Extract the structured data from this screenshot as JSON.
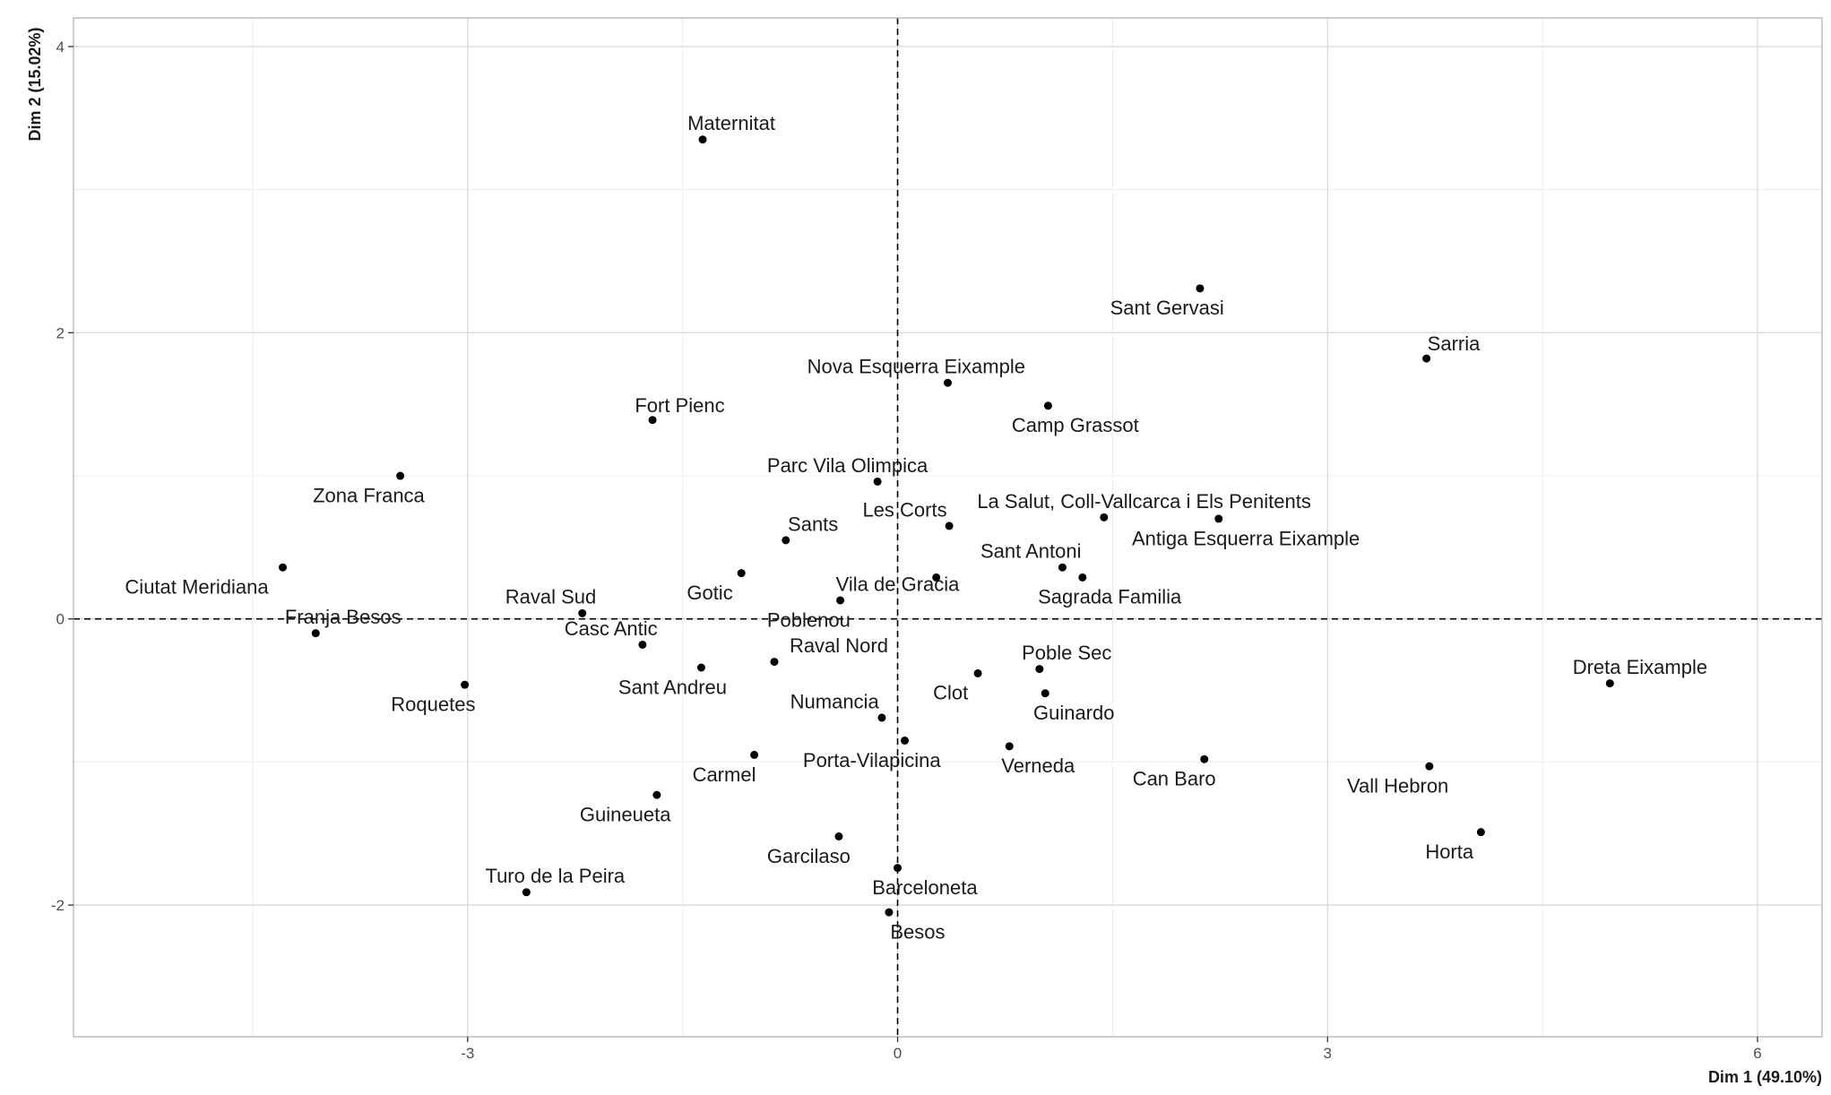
{
  "chart_data": {
    "type": "scatter",
    "title": "",
    "xlabel": "Dim 1 (49.10%)",
    "ylabel": "Dim 2 (15.02%)",
    "xlim": [
      -5.75,
      6.45
    ],
    "ylim": [
      -2.92,
      4.2
    ],
    "x_ticks": [
      -3,
      0,
      3,
      6
    ],
    "y_ticks": [
      -2,
      0,
      2,
      4
    ],
    "grid": true,
    "reference_lines": {
      "x": 0,
      "y": 0,
      "style": "dashed"
    },
    "colors": {
      "point": "#000000",
      "grid": "#d9d9d9",
      "grid_minor": "#ededed",
      "panel_border": "#b3b3b3",
      "text": "#1a1a1a"
    },
    "points": [
      {
        "label": "Maternitat",
        "x": -1.36,
        "y": 3.35,
        "label_dx": 0.2,
        "label_dy": 0.11
      },
      {
        "label": "Sant Gervasi",
        "x": 2.11,
        "y": 2.31,
        "label_dx": -0.23,
        "label_dy": -0.14
      },
      {
        "label": "Sarria",
        "x": 3.69,
        "y": 1.82,
        "label_dx": 0.19,
        "label_dy": 0.1
      },
      {
        "label": "Nova Esquerra Eixample",
        "x": 0.35,
        "y": 1.65,
        "label_dx": -0.22,
        "label_dy": 0.11
      },
      {
        "label": "Camp Grassot",
        "x": 1.05,
        "y": 1.49,
        "label_dx": 0.19,
        "label_dy": -0.14
      },
      {
        "label": "Fort Pienc",
        "x": -1.71,
        "y": 1.39,
        "label_dx": 0.19,
        "label_dy": 0.1
      },
      {
        "label": "Zona Franca",
        "x": -3.47,
        "y": 1.0,
        "label_dx": -0.22,
        "label_dy": -0.14
      },
      {
        "label": "Parc Vila Olimpica",
        "x": -0.14,
        "y": 0.96,
        "label_dx": -0.21,
        "label_dy": 0.11
      },
      {
        "label": "Les Corts",
        "x": 0.36,
        "y": 0.65,
        "label_dx": -0.31,
        "label_dy": 0.11
      },
      {
        "label": "La Salut, Coll-Vallcarca i Els Penitents",
        "x": 1.44,
        "y": 0.71,
        "label_dx": 0.28,
        "label_dy": 0.11
      },
      {
        "label": "Antiga Esquerra Eixample",
        "x": 2.24,
        "y": 0.7,
        "label_dx": 0.19,
        "label_dy": -0.14
      },
      {
        "label": "Sants",
        "x": -0.78,
        "y": 0.55,
        "label_dx": 0.19,
        "label_dy": 0.11
      },
      {
        "label": "Sant Antoni",
        "x": 1.15,
        "y": 0.36,
        "label_dx": -0.22,
        "label_dy": 0.11
      },
      {
        "label": "Sagrada Familia",
        "x": 1.29,
        "y": 0.29,
        "label_dx": 0.19,
        "label_dy": -0.14
      },
      {
        "label": "Vila de Gracia",
        "x": 0.27,
        "y": 0.29,
        "label_dx": -0.27,
        "label_dy": -0.05
      },
      {
        "label": "Gotic",
        "x": -1.09,
        "y": 0.32,
        "label_dx": -0.22,
        "label_dy": -0.14
      },
      {
        "label": "Ciutat Meridiana",
        "x": -4.29,
        "y": 0.36,
        "label_dx": -0.6,
        "label_dy": -0.14
      },
      {
        "label": "Raval Sud",
        "x": -2.2,
        "y": 0.04,
        "label_dx": -0.22,
        "label_dy": 0.11
      },
      {
        "label": "Poblenou",
        "x": -0.4,
        "y": 0.13,
        "label_dx": -0.22,
        "label_dy": -0.14
      },
      {
        "label": "Franja Besos",
        "x": -4.06,
        "y": -0.1,
        "label_dx": 0.19,
        "label_dy": 0.11
      },
      {
        "label": "Casc Antic",
        "x": -1.78,
        "y": -0.18,
        "label_dx": -0.22,
        "label_dy": 0.11
      },
      {
        "label": "Raval Nord",
        "x": -0.86,
        "y": -0.3,
        "label_dx": 0.45,
        "label_dy": 0.11
      },
      {
        "label": "Sant Andreu",
        "x": -1.37,
        "y": -0.34,
        "label_dx": -0.2,
        "label_dy": -0.14
      },
      {
        "label": "Poble Sec",
        "x": 0.99,
        "y": -0.35,
        "label_dx": 0.19,
        "label_dy": 0.11
      },
      {
        "label": "Clot",
        "x": 0.56,
        "y": -0.38,
        "label_dx": -0.19,
        "label_dy": -0.14
      },
      {
        "label": "Guinardo",
        "x": 1.03,
        "y": -0.52,
        "label_dx": 0.2,
        "label_dy": -0.14
      },
      {
        "label": "Dreta Eixample",
        "x": 4.97,
        "y": -0.45,
        "label_dx": 0.21,
        "label_dy": 0.11
      },
      {
        "label": "Roquetes",
        "x": -3.02,
        "y": -0.46,
        "label_dx": -0.22,
        "label_dy": -0.14
      },
      {
        "label": "Numancia",
        "x": -0.11,
        "y": -0.69,
        "label_dx": -0.33,
        "label_dy": 0.11
      },
      {
        "label": "Porta-Vilapicina",
        "x": 0.05,
        "y": -0.85,
        "label_dx": -0.23,
        "label_dy": -0.14
      },
      {
        "label": "Verneda",
        "x": 0.78,
        "y": -0.89,
        "label_dx": 0.2,
        "label_dy": -0.14
      },
      {
        "label": "Carmel",
        "x": -1.0,
        "y": -0.95,
        "label_dx": -0.21,
        "label_dy": -0.14
      },
      {
        "label": "Can Baro",
        "x": 2.14,
        "y": -0.98,
        "label_dx": -0.21,
        "label_dy": -0.14
      },
      {
        "label": "Vall Hebron",
        "x": 3.71,
        "y": -1.03,
        "label_dx": -0.22,
        "label_dy": -0.14
      },
      {
        "label": "Guineueta",
        "x": -1.68,
        "y": -1.23,
        "label_dx": -0.22,
        "label_dy": -0.14
      },
      {
        "label": "Horta",
        "x": 4.07,
        "y": -1.49,
        "label_dx": -0.22,
        "label_dy": -0.14
      },
      {
        "label": "Garcilaso",
        "x": -0.41,
        "y": -1.52,
        "label_dx": -0.21,
        "label_dy": -0.14
      },
      {
        "label": "Barceloneta",
        "x": 0.0,
        "y": -1.74,
        "label_dx": 0.19,
        "label_dy": -0.14
      },
      {
        "label": "Turo de la Peira",
        "x": -2.59,
        "y": -1.91,
        "label_dx": 0.2,
        "label_dy": 0.11
      },
      {
        "label": "Besos",
        "x": -0.06,
        "y": -2.05,
        "label_dx": 0.2,
        "label_dy": -0.14
      }
    ]
  }
}
